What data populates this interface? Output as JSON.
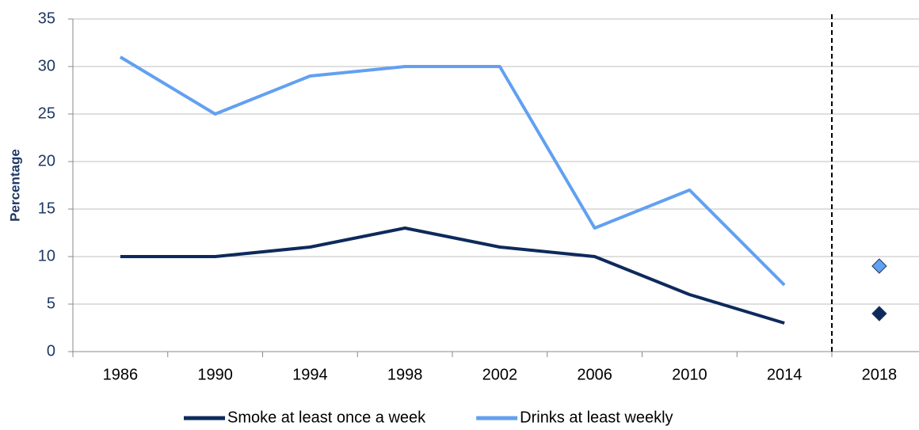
{
  "chart_data": {
    "type": "line",
    "y_axis_label": "Percentage",
    "categories": [
      "1986",
      "1990",
      "1994",
      "1998",
      "2002",
      "2006",
      "2010",
      "2014",
      "2018"
    ],
    "series": [
      {
        "name": "Smoke at least once a week",
        "color": "#0e2a5c",
        "values": [
          10,
          10,
          11,
          13,
          11,
          10,
          6,
          3,
          4
        ]
      },
      {
        "name": "Drinks at least weekly",
        "color": "#62a0f0",
        "values": [
          31,
          25,
          29,
          30,
          30,
          13,
          17,
          7,
          9
        ]
      }
    ],
    "last_point_marker": true,
    "divider": "dashed",
    "ylim": [
      0,
      35
    ],
    "yticks": [
      0,
      5,
      10,
      15,
      20,
      25,
      30,
      35
    ],
    "grid": true,
    "legend": "bottom"
  }
}
